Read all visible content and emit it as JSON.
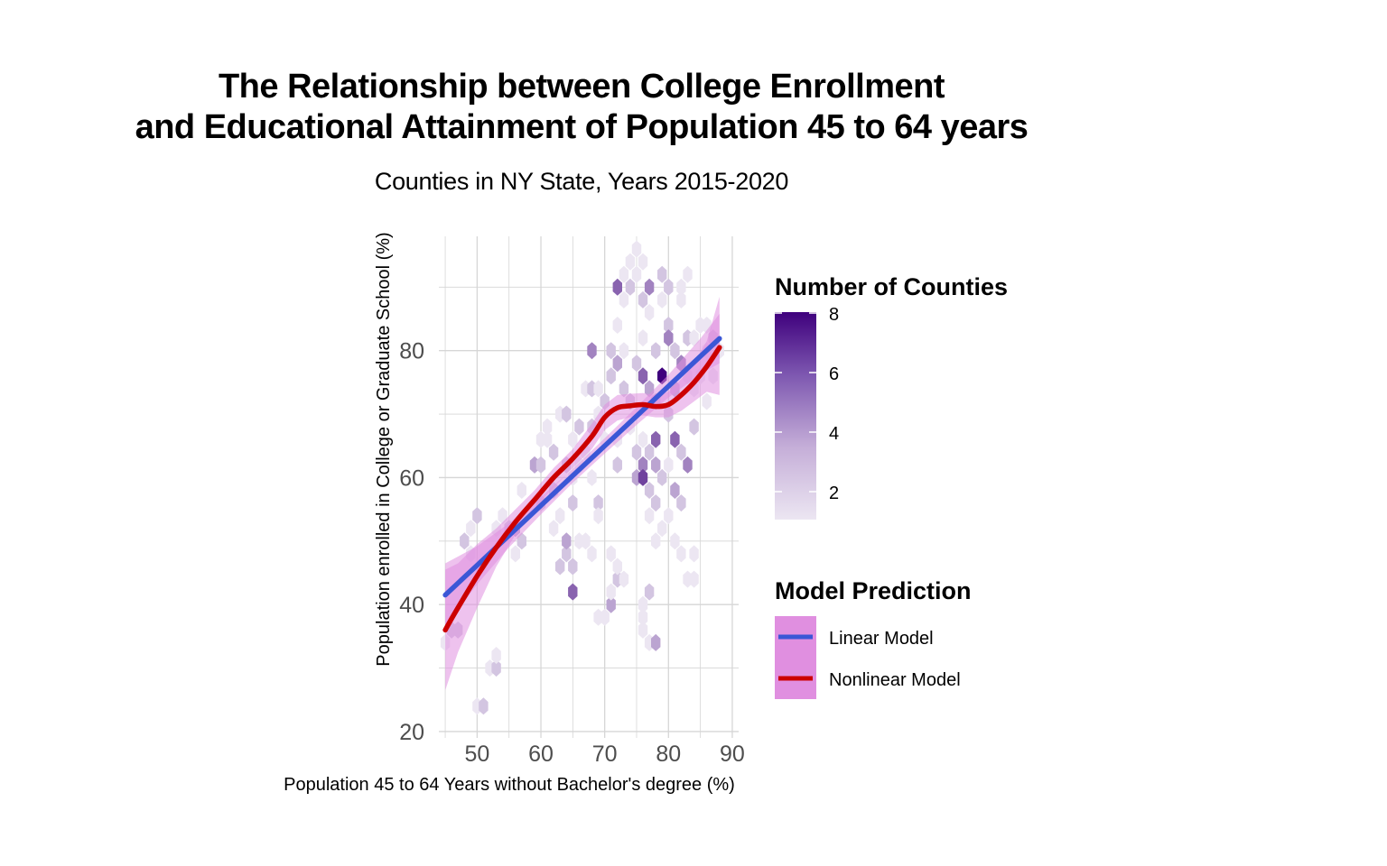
{
  "title_lines": [
    "The Relationship between College Enrollment",
    "and Educational Attainment of Population 45 to 64 years"
  ],
  "subtitle": "Counties in NY State, Years 2015-2020",
  "legend_fill": {
    "title": "Number of Counties",
    "breaks": [
      "8",
      "6",
      "4",
      "2"
    ],
    "low_color": "#ece6f2",
    "high_color": "#3f007d"
  },
  "legend_model": {
    "title": "Model Prediction",
    "items": [
      {
        "label": "Linear Model",
        "color": "#3b57d6"
      },
      {
        "label": "Nonlinear Model",
        "color": "#cc0000"
      }
    ],
    "band_color": "#e08fe0"
  },
  "chart_data": {
    "type": "scatter",
    "subtype": "hexbin",
    "title": "The Relationship between College Enrollment and Educational Attainment of Population 45 to 64 years",
    "subtitle": "Counties in NY State, Years 2015-2020",
    "xlabel": "Population 45 to 64 Years without Bachelor's degree (%)",
    "ylabel": "Population enrolled in College or Graduate School (%)",
    "xlim": [
      44,
      91
    ],
    "ylim": [
      19,
      98
    ],
    "x_ticks": [
      50,
      60,
      70,
      80,
      90
    ],
    "y_ticks": [
      20,
      40,
      60,
      80
    ],
    "grid": true,
    "legend_position": "right",
    "hexbins": [
      {
        "x": 45,
        "y": 34,
        "count": 1
      },
      {
        "x": 46,
        "y": 36,
        "count": 2
      },
      {
        "x": 47,
        "y": 36,
        "count": 2
      },
      {
        "x": 48,
        "y": 50,
        "count": 2
      },
      {
        "x": 49,
        "y": 52,
        "count": 1
      },
      {
        "x": 49,
        "y": 48,
        "count": 1
      },
      {
        "x": 50,
        "y": 54,
        "count": 2
      },
      {
        "x": 50,
        "y": 24,
        "count": 1
      },
      {
        "x": 51,
        "y": 24,
        "count": 2
      },
      {
        "x": 52,
        "y": 30,
        "count": 1
      },
      {
        "x": 53,
        "y": 30,
        "count": 2
      },
      {
        "x": 53,
        "y": 32,
        "count": 1
      },
      {
        "x": 53,
        "y": 52,
        "count": 1
      },
      {
        "x": 54,
        "y": 54,
        "count": 1
      },
      {
        "x": 55,
        "y": 52,
        "count": 2
      },
      {
        "x": 56,
        "y": 52,
        "count": 3
      },
      {
        "x": 57,
        "y": 50,
        "count": 2
      },
      {
        "x": 56,
        "y": 48,
        "count": 1
      },
      {
        "x": 57,
        "y": 58,
        "count": 1
      },
      {
        "x": 59,
        "y": 62,
        "count": 3
      },
      {
        "x": 60,
        "y": 62,
        "count": 2
      },
      {
        "x": 60,
        "y": 66,
        "count": 1
      },
      {
        "x": 61,
        "y": 66,
        "count": 1
      },
      {
        "x": 61,
        "y": 68,
        "count": 1
      },
      {
        "x": 60,
        "y": 56,
        "count": 2
      },
      {
        "x": 62,
        "y": 58,
        "count": 2
      },
      {
        "x": 62,
        "y": 52,
        "count": 1
      },
      {
        "x": 63,
        "y": 54,
        "count": 1
      },
      {
        "x": 62,
        "y": 64,
        "count": 2
      },
      {
        "x": 63,
        "y": 70,
        "count": 1
      },
      {
        "x": 64,
        "y": 70,
        "count": 2
      },
      {
        "x": 64,
        "y": 62,
        "count": 2
      },
      {
        "x": 65,
        "y": 66,
        "count": 1
      },
      {
        "x": 66,
        "y": 62,
        "count": 1
      },
      {
        "x": 63,
        "y": 46,
        "count": 2
      },
      {
        "x": 64,
        "y": 48,
        "count": 2
      },
      {
        "x": 64,
        "y": 50,
        "count": 3
      },
      {
        "x": 65,
        "y": 46,
        "count": 2
      },
      {
        "x": 65,
        "y": 42,
        "count": 5
      },
      {
        "x": 66,
        "y": 50,
        "count": 1
      },
      {
        "x": 67,
        "y": 50,
        "count": 1
      },
      {
        "x": 68,
        "y": 48,
        "count": 1
      },
      {
        "x": 65,
        "y": 56,
        "count": 2
      },
      {
        "x": 65,
        "y": 60,
        "count": 1
      },
      {
        "x": 66,
        "y": 68,
        "count": 2
      },
      {
        "x": 67,
        "y": 64,
        "count": 1
      },
      {
        "x": 67,
        "y": 74,
        "count": 1
      },
      {
        "x": 68,
        "y": 74,
        "count": 2
      },
      {
        "x": 68,
        "y": 68,
        "count": 2
      },
      {
        "x": 69,
        "y": 70,
        "count": 1
      },
      {
        "x": 69,
        "y": 74,
        "count": 1
      },
      {
        "x": 70,
        "y": 72,
        "count": 2
      },
      {
        "x": 68,
        "y": 80,
        "count": 4
      },
      {
        "x": 68,
        "y": 60,
        "count": 1
      },
      {
        "x": 69,
        "y": 56,
        "count": 2
      },
      {
        "x": 69,
        "y": 54,
        "count": 1
      },
      {
        "x": 70,
        "y": 66,
        "count": 1
      },
      {
        "x": 69,
        "y": 38,
        "count": 1
      },
      {
        "x": 70,
        "y": 38,
        "count": 1
      },
      {
        "x": 71,
        "y": 40,
        "count": 3
      },
      {
        "x": 71,
        "y": 42,
        "count": 1
      },
      {
        "x": 72,
        "y": 44,
        "count": 2
      },
      {
        "x": 71,
        "y": 48,
        "count": 1
      },
      {
        "x": 72,
        "y": 46,
        "count": 1
      },
      {
        "x": 73,
        "y": 44,
        "count": 1
      },
      {
        "x": 72,
        "y": 62,
        "count": 2
      },
      {
        "x": 72,
        "y": 66,
        "count": 1
      },
      {
        "x": 71,
        "y": 76,
        "count": 2
      },
      {
        "x": 72,
        "y": 78,
        "count": 3
      },
      {
        "x": 71,
        "y": 80,
        "count": 2
      },
      {
        "x": 73,
        "y": 74,
        "count": 2
      },
      {
        "x": 73,
        "y": 80,
        "count": 1
      },
      {
        "x": 72,
        "y": 84,
        "count": 1
      },
      {
        "x": 73,
        "y": 88,
        "count": 1
      },
      {
        "x": 72,
        "y": 90,
        "count": 5
      },
      {
        "x": 73,
        "y": 92,
        "count": 1
      },
      {
        "x": 74,
        "y": 94,
        "count": 1
      },
      {
        "x": 74,
        "y": 90,
        "count": 2
      },
      {
        "x": 75,
        "y": 92,
        "count": 1
      },
      {
        "x": 75,
        "y": 96,
        "count": 1
      },
      {
        "x": 76,
        "y": 94,
        "count": 1
      },
      {
        "x": 76,
        "y": 88,
        "count": 2
      },
      {
        "x": 77,
        "y": 86,
        "count": 1
      },
      {
        "x": 77,
        "y": 90,
        "count": 4
      },
      {
        "x": 76,
        "y": 82,
        "count": 1
      },
      {
        "x": 75,
        "y": 78,
        "count": 2
      },
      {
        "x": 74,
        "y": 72,
        "count": 2
      },
      {
        "x": 74,
        "y": 68,
        "count": 1
      },
      {
        "x": 75,
        "y": 64,
        "count": 2
      },
      {
        "x": 75,
        "y": 60,
        "count": 3
      },
      {
        "x": 76,
        "y": 62,
        "count": 4
      },
      {
        "x": 76,
        "y": 60,
        "count": 6
      },
      {
        "x": 77,
        "y": 58,
        "count": 2
      },
      {
        "x": 77,
        "y": 64,
        "count": 2
      },
      {
        "x": 76,
        "y": 66,
        "count": 1
      },
      {
        "x": 76,
        "y": 76,
        "count": 5
      },
      {
        "x": 77,
        "y": 74,
        "count": 3
      },
      {
        "x": 78,
        "y": 80,
        "count": 2
      },
      {
        "x": 78,
        "y": 72,
        "count": 2
      },
      {
        "x": 78,
        "y": 66,
        "count": 5
      },
      {
        "x": 78,
        "y": 62,
        "count": 3
      },
      {
        "x": 78,
        "y": 56,
        "count": 2
      },
      {
        "x": 77,
        "y": 54,
        "count": 1
      },
      {
        "x": 78,
        "y": 50,
        "count": 1
      },
      {
        "x": 79,
        "y": 60,
        "count": 2
      },
      {
        "x": 79,
        "y": 76,
        "count": 8
      },
      {
        "x": 79,
        "y": 88,
        "count": 1
      },
      {
        "x": 79,
        "y": 92,
        "count": 2
      },
      {
        "x": 80,
        "y": 90,
        "count": 2
      },
      {
        "x": 80,
        "y": 84,
        "count": 2
      },
      {
        "x": 80,
        "y": 82,
        "count": 4
      },
      {
        "x": 80,
        "y": 70,
        "count": 2
      },
      {
        "x": 80,
        "y": 62,
        "count": 1
      },
      {
        "x": 80,
        "y": 54,
        "count": 1
      },
      {
        "x": 79,
        "y": 52,
        "count": 1
      },
      {
        "x": 81,
        "y": 58,
        "count": 3
      },
      {
        "x": 81,
        "y": 50,
        "count": 1
      },
      {
        "x": 81,
        "y": 66,
        "count": 5
      },
      {
        "x": 81,
        "y": 74,
        "count": 3
      },
      {
        "x": 81,
        "y": 80,
        "count": 2
      },
      {
        "x": 82,
        "y": 88,
        "count": 1
      },
      {
        "x": 82,
        "y": 90,
        "count": 1
      },
      {
        "x": 82,
        "y": 78,
        "count": 4
      },
      {
        "x": 82,
        "y": 64,
        "count": 2
      },
      {
        "x": 82,
        "y": 56,
        "count": 2
      },
      {
        "x": 82,
        "y": 48,
        "count": 1
      },
      {
        "x": 83,
        "y": 92,
        "count": 1
      },
      {
        "x": 83,
        "y": 82,
        "count": 2
      },
      {
        "x": 83,
        "y": 76,
        "count": 1
      },
      {
        "x": 83,
        "y": 62,
        "count": 4
      },
      {
        "x": 83,
        "y": 44,
        "count": 1
      },
      {
        "x": 84,
        "y": 44,
        "count": 1
      },
      {
        "x": 84,
        "y": 48,
        "count": 1
      },
      {
        "x": 84,
        "y": 68,
        "count": 2
      },
      {
        "x": 84,
        "y": 74,
        "count": 1
      },
      {
        "x": 84,
        "y": 82,
        "count": 1
      },
      {
        "x": 85,
        "y": 76,
        "count": 1
      },
      {
        "x": 85,
        "y": 84,
        "count": 1
      },
      {
        "x": 86,
        "y": 80,
        "count": 1
      },
      {
        "x": 86,
        "y": 84,
        "count": 1
      },
      {
        "x": 86,
        "y": 72,
        "count": 1
      },
      {
        "x": 87,
        "y": 76,
        "count": 1
      },
      {
        "x": 87,
        "y": 82,
        "count": 2
      },
      {
        "x": 88,
        "y": 80,
        "count": 1
      },
      {
        "x": 76,
        "y": 38,
        "count": 1
      },
      {
        "x": 76,
        "y": 36,
        "count": 1
      },
      {
        "x": 77,
        "y": 34,
        "count": 1
      },
      {
        "x": 78,
        "y": 34,
        "count": 3
      },
      {
        "x": 77,
        "y": 42,
        "count": 2
      },
      {
        "x": 76,
        "y": 40,
        "count": 1
      }
    ],
    "series": [
      {
        "name": "Linear Model",
        "color": "#3b57d6",
        "x": [
          45,
          50,
          55,
          60,
          65,
          70,
          75,
          80,
          85,
          88
        ],
        "y": [
          41.5,
          46.2,
          50.9,
          55.6,
          60.3,
          65.0,
          69.7,
          74.4,
          79.1,
          81.9
        ],
        "band_lo": [
          36.5,
          43.2,
          49.0,
          54.2,
          59.2,
          63.8,
          68.3,
          72.6,
          76.3,
          78.0
        ],
        "band_hi": [
          46.5,
          49.2,
          52.8,
          57.0,
          61.4,
          66.2,
          71.1,
          76.2,
          81.9,
          85.8
        ]
      },
      {
        "name": "Nonlinear Model",
        "color": "#cc0000",
        "x": [
          45,
          47,
          50,
          53,
          56,
          59,
          62,
          65,
          68,
          70,
          72,
          74,
          76,
          78,
          80,
          82,
          84,
          86,
          88
        ],
        "y": [
          36,
          39.5,
          44.5,
          49,
          53,
          56.5,
          60,
          63,
          66.5,
          69.5,
          71,
          71.3,
          71.5,
          71.2,
          71.5,
          73,
          75,
          77.5,
          80.5
        ],
        "band_lo": [
          26.5,
          32.5,
          39.5,
          46,
          51,
          55,
          58.5,
          61.5,
          64.5,
          67.5,
          69,
          69.5,
          69.8,
          69.5,
          69.5,
          70.5,
          72,
          73.5,
          73
        ],
        "band_hi": [
          45.5,
          46.5,
          49.5,
          52,
          55,
          58,
          61.5,
          64.5,
          68.5,
          71.5,
          73,
          73.2,
          73.3,
          73,
          73.5,
          75.5,
          78,
          81.5,
          88.5
        ]
      }
    ]
  }
}
